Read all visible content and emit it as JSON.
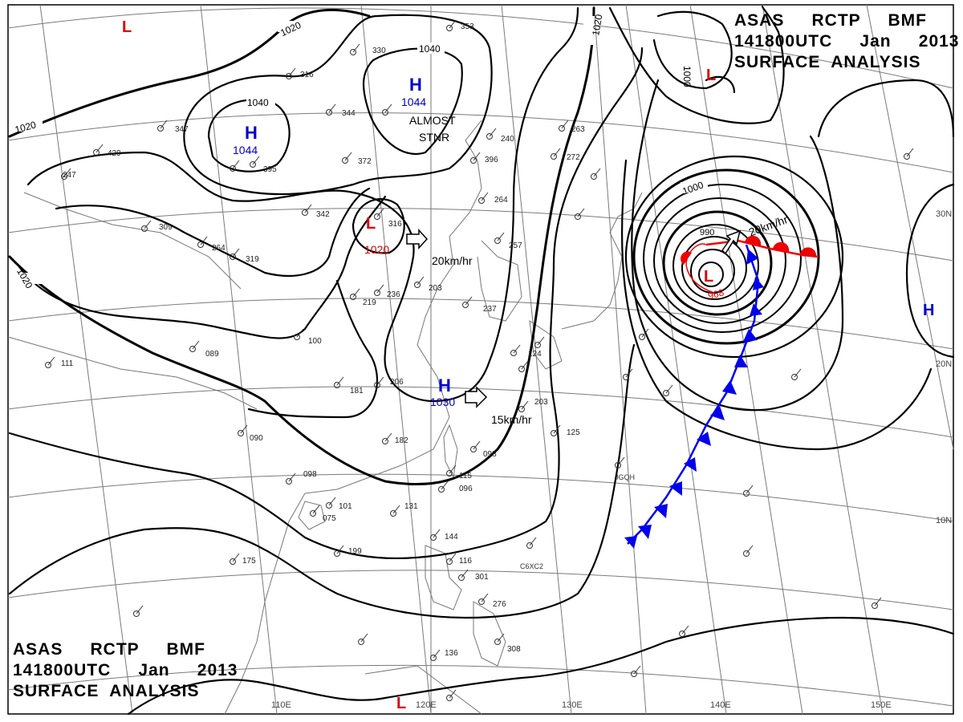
{
  "header": {
    "line1": "ASAS     RCTP     BMF",
    "line2": "141800UTC     Jan     2013",
    "line3": "SURFACE  ANALYSIS"
  },
  "footer": {
    "line1": "ASAS     RCTP     BMF",
    "line2": "141800UTC     Jan     2013",
    "line3": "SURFACE  ANALYSIS"
  },
  "longitude_labels": [
    "110E",
    "120E",
    "130E",
    "140E",
    "150E"
  ],
  "latitude_labels": [
    "30N",
    "20N",
    "10N"
  ],
  "isobar_labels": [
    "1020",
    "1040",
    "1040",
    "1020",
    "1020",
    "1000",
    "1000",
    "990",
    "1020"
  ],
  "pressure_centers": [
    {
      "kind": "H",
      "value": "1044",
      "color": "#0000cc"
    },
    {
      "kind": "H",
      "value": "1044",
      "color": "#0000cc"
    },
    {
      "kind": "H",
      "value": "1030",
      "color": "#0000cc"
    },
    {
      "kind": "H",
      "value": "",
      "color": "#0000cc"
    },
    {
      "kind": "L",
      "value": "1020",
      "color": "#dd0000"
    },
    {
      "kind": "L",
      "value": "968",
      "color": "#dd0000"
    },
    {
      "kind": "L",
      "value": "",
      "color": "#dd0000"
    },
    {
      "kind": "L",
      "value": "",
      "color": "#dd0000"
    },
    {
      "kind": "L",
      "value": "",
      "color": "#dd0000"
    }
  ],
  "annotations": {
    "stationary_1": "ALMOST",
    "stationary_2": "STNR",
    "motion_1": "20km/hr",
    "motion_2": "15km/hr",
    "motion_3": "20km/hr"
  },
  "ship_labels": [
    "JGQH",
    "C6XC2"
  ],
  "station_numbers": [
    "353",
    "330",
    "316",
    "344",
    "347",
    "372",
    "395",
    "396",
    "429",
    "247",
    "309",
    "316",
    "342",
    "319",
    "264",
    "264",
    "257",
    "263",
    "272",
    "240",
    "237",
    "236",
    "219",
    "203",
    "206",
    "181",
    "182",
    "203",
    "125",
    "124",
    "098",
    "115",
    "096",
    "101",
    "075",
    "098",
    "090",
    "089",
    "111",
    "100",
    "131",
    "199",
    "175",
    "144",
    "116",
    "301",
    "276",
    "308",
    "136"
  ],
  "colors": {
    "high": "#0000cc",
    "low": "#dd0000",
    "cold_front": "#0000ee",
    "warm_front": "#ee0000",
    "isobar": "#000000",
    "grid": "#707070",
    "coast": "#666666"
  }
}
